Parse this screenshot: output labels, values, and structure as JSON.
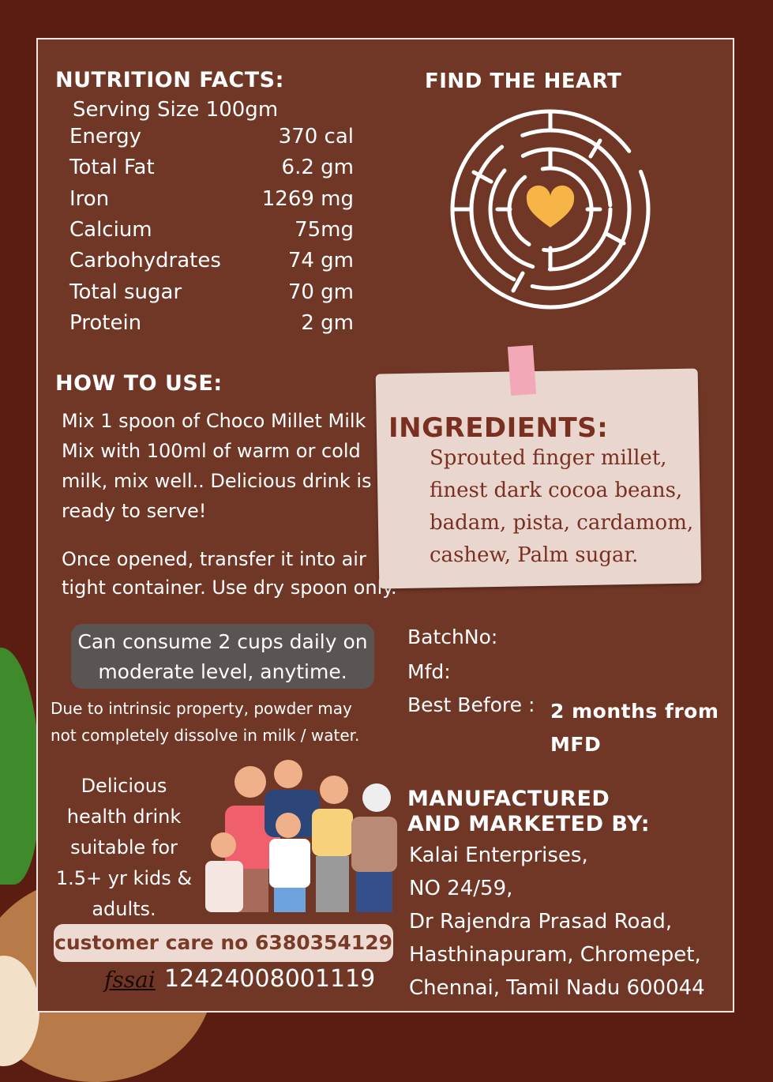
{
  "nutrition": {
    "title": "NUTRITION FACTS:",
    "serving": "Serving Size 100gm",
    "rows": [
      {
        "name": "Energy",
        "value": "370 cal"
      },
      {
        "name": "Total Fat",
        "value": "6.2 gm"
      },
      {
        "name": "Iron",
        "value": "1269 mg"
      },
      {
        "name": "Calcium",
        "value": "75mg"
      },
      {
        "name": "Carbohydrates",
        "value": "74 gm"
      },
      {
        "name": "Total sugar",
        "value": "70 gm"
      },
      {
        "name": "Protein",
        "value": "2 gm"
      }
    ]
  },
  "maze": {
    "title": "FIND THE HEART",
    "heart_color": "#f6b546"
  },
  "how_to_use": {
    "title": "HOW TO USE:",
    "lines": [
      "Mix 1 spoon of Choco Millet Milk",
      "Mix with 100ml of warm or cold",
      "milk, mix well.. Delicious drink is",
      "ready to serve!"
    ],
    "storage": [
      "Once opened, transfer it into air",
      "tight container. Use dry spoon only."
    ]
  },
  "ingredients": {
    "title": "INGREDIENTS:",
    "lines": [
      "Sprouted finger millet,",
      "finest dark cocoa beans,",
      "badam, pista, cardamom,",
      "cashew, Palm sugar."
    ]
  },
  "consume": {
    "lines": [
      "Can consume 2 cups daily on",
      "moderate level, anytime."
    ],
    "note": [
      "Due to intrinsic property, powder may",
      "not completely dissolve in milk / water."
    ]
  },
  "batch": {
    "batch_label": "BatchNo:",
    "mfd_label": "Mfd:",
    "best_before_label": "Best Before :",
    "best_before_value": [
      "2 months from",
      "MFD"
    ]
  },
  "tagline": [
    "Delicious",
    "health drink",
    "suitable for",
    "1.5+ yr kids &",
    "adults."
  ],
  "customer_care": "customer care no 6380354129",
  "fssai": {
    "logo": "fssai",
    "number": "12424008001119"
  },
  "manufacturer": {
    "title": [
      "MANUFACTURED",
      "AND MARKETED BY:"
    ],
    "address": [
      "Kalai Enterprises,",
      "NO 24/59,",
      "Dr Rajendra Prasad Road,",
      "Hasthinapuram, Chromepet,",
      "Chennai, Tamil Nadu 600044"
    ]
  },
  "colors": {
    "background": "#5b1d12",
    "panel": "#703626",
    "paper": "#e9d6cf",
    "ingredient_text": "#7a3020"
  }
}
